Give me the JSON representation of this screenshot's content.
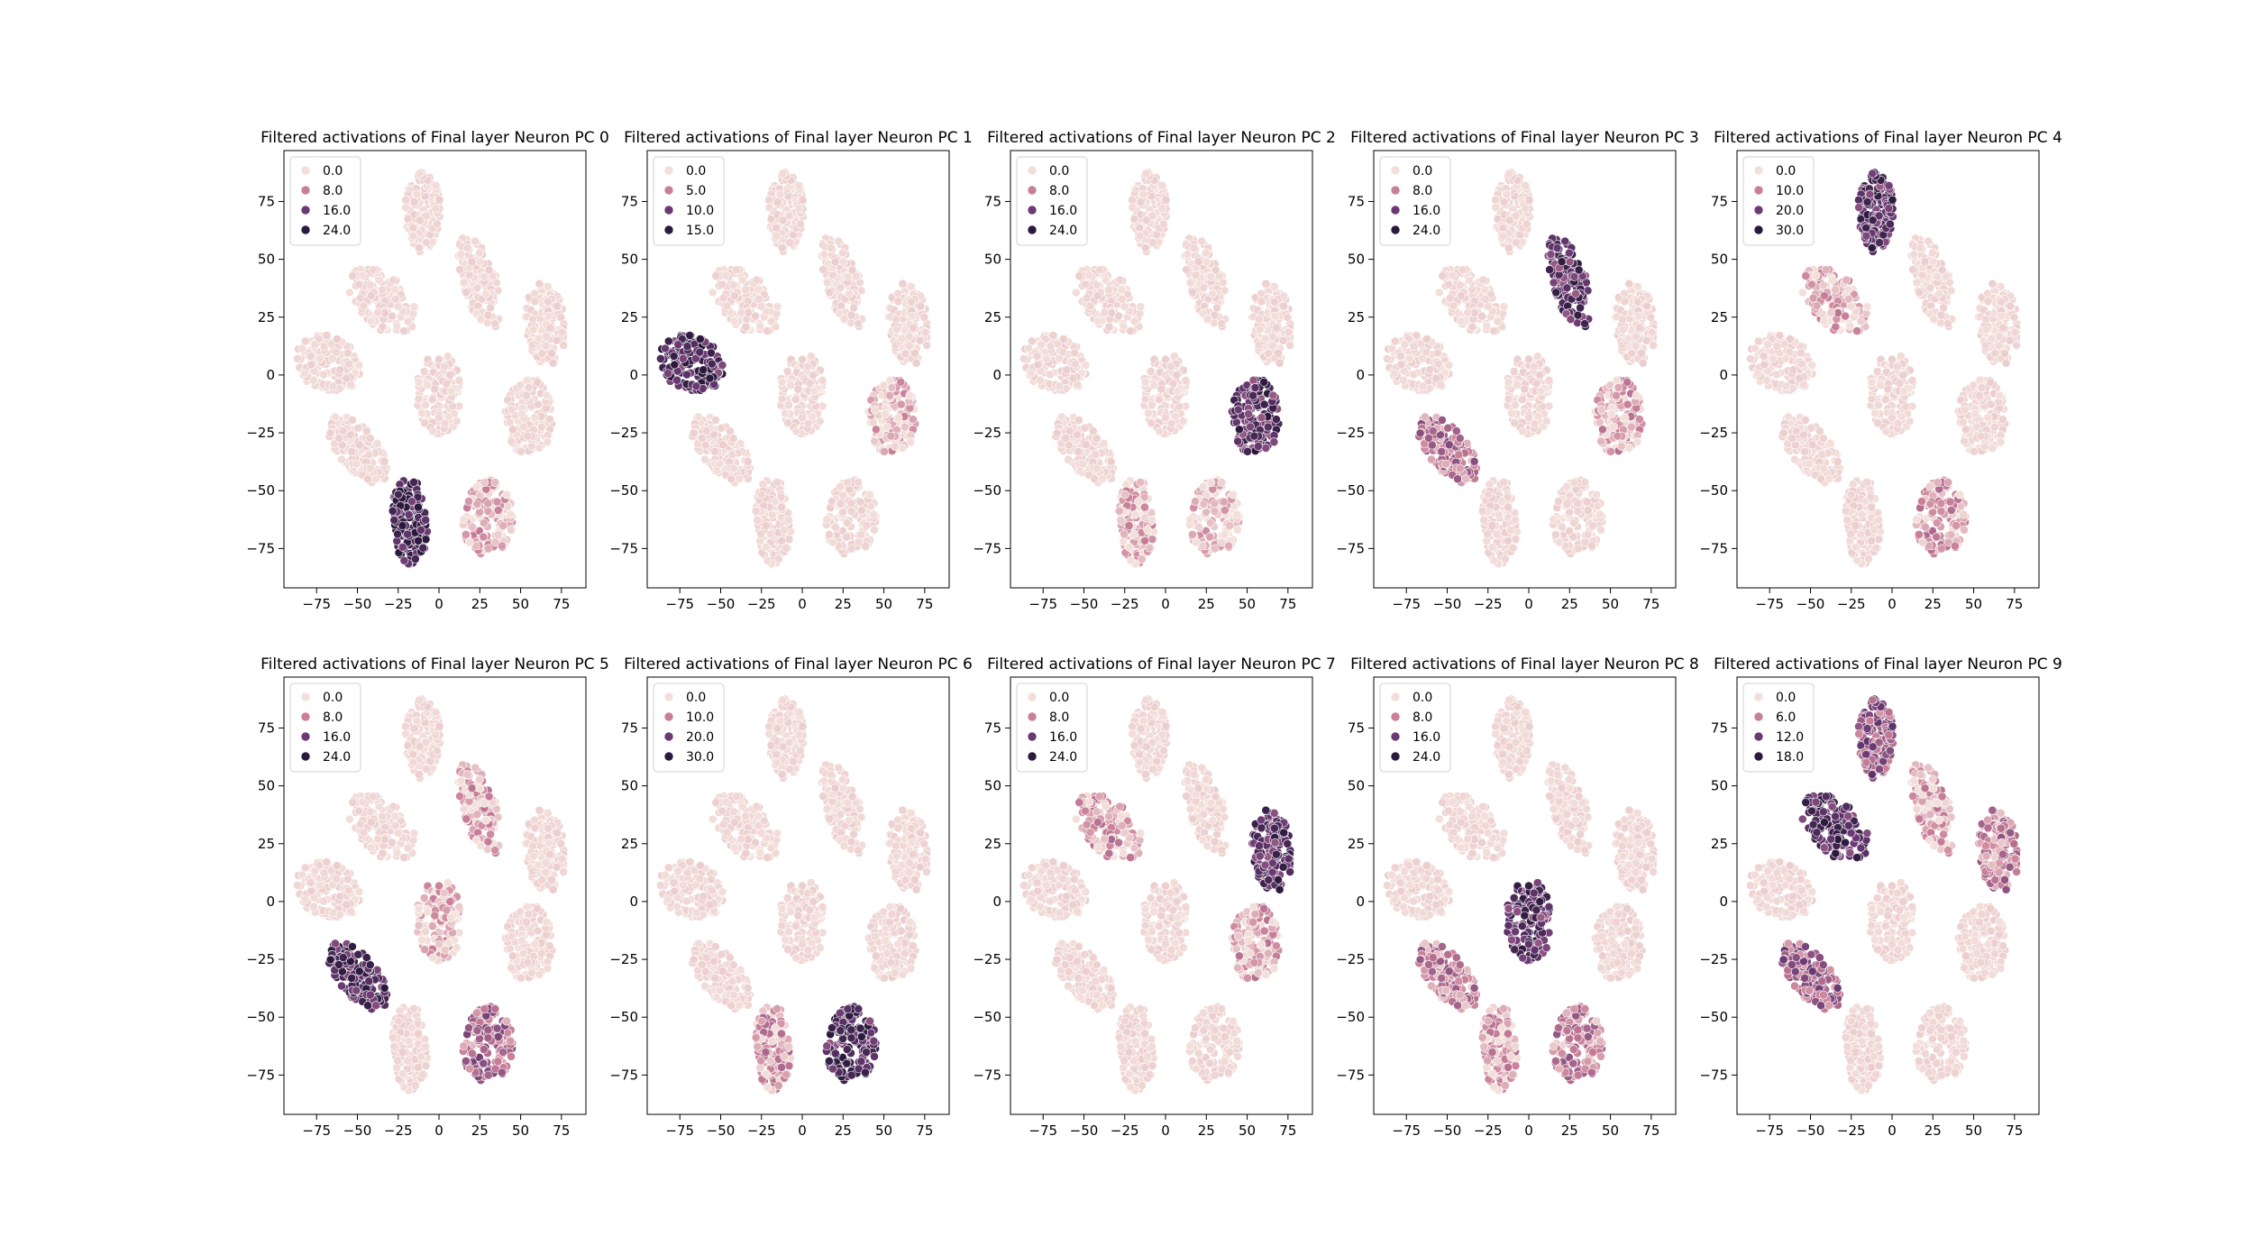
{
  "figure": {
    "layout": {
      "rows": 2,
      "cols": 5
    }
  },
  "colors": {
    "low": "#f3dfda",
    "mid_low": "#c97f98",
    "mid_high": "#6b3a74",
    "high": "#2b1a3d",
    "edge": "#ffffff"
  },
  "chart_data": [
    {
      "type": "scatter",
      "title": "Filtered activations of Final layer Neuron PC 0",
      "xlim": [
        -95,
        90
      ],
      "ylim": [
        -92,
        97
      ],
      "xticks": [
        -75,
        -50,
        -25,
        0,
        25,
        50,
        75
      ],
      "yticks": [
        -75,
        -50,
        -25,
        0,
        25,
        50,
        75
      ],
      "legend": {
        "placement": "upper-left",
        "entries": [
          "0.0",
          "8.0",
          "16.0",
          "24.0"
        ]
      },
      "hue_max": 24,
      "highlights": [
        {
          "cluster": 9,
          "level": 0.95
        },
        {
          "cluster": 8,
          "level": 0.22
        }
      ]
    },
    {
      "type": "scatter",
      "title": "Filtered activations of Final layer Neuron PC 1",
      "xlim": [
        -95,
        90
      ],
      "ylim": [
        -92,
        97
      ],
      "xticks": [
        -75,
        -50,
        -25,
        0,
        25,
        50,
        75
      ],
      "yticks": [
        -75,
        -50,
        -25,
        0,
        25,
        50,
        75
      ],
      "legend": {
        "placement": "upper-left",
        "entries": [
          "0.0",
          "5.0",
          "10.0",
          "15.0"
        ]
      },
      "hue_max": 15,
      "highlights": [
        {
          "cluster": 1,
          "level": 0.92
        },
        {
          "cluster": 6,
          "level": 0.18
        }
      ]
    },
    {
      "type": "scatter",
      "title": "Filtered activations of Final layer Neuron PC 2",
      "xlim": [
        -95,
        90
      ],
      "ylim": [
        -92,
        97
      ],
      "xticks": [
        -75,
        -50,
        -25,
        0,
        25,
        50,
        75
      ],
      "yticks": [
        -75,
        -50,
        -25,
        0,
        25,
        50,
        75
      ],
      "legend": {
        "placement": "upper-left",
        "entries": [
          "0.0",
          "8.0",
          "16.0",
          "24.0"
        ]
      },
      "hue_max": 24,
      "highlights": [
        {
          "cluster": 6,
          "level": 0.85
        },
        {
          "cluster": 9,
          "level": 0.2
        },
        {
          "cluster": 8,
          "level": 0.15
        }
      ]
    },
    {
      "type": "scatter",
      "title": "Filtered activations of Final layer Neuron PC 3",
      "xlim": [
        -95,
        90
      ],
      "ylim": [
        -92,
        97
      ],
      "xticks": [
        -75,
        -50,
        -25,
        0,
        25,
        50,
        75
      ],
      "yticks": [
        -75,
        -50,
        -25,
        0,
        25,
        50,
        75
      ],
      "legend": {
        "placement": "upper-left",
        "entries": [
          "0.0",
          "8.0",
          "16.0",
          "24.0"
        ]
      },
      "hue_max": 24,
      "highlights": [
        {
          "cluster": 3,
          "level": 0.85
        },
        {
          "cluster": 7,
          "level": 0.45
        },
        {
          "cluster": 6,
          "level": 0.25
        }
      ]
    },
    {
      "type": "scatter",
      "title": "Filtered activations of Final layer Neuron PC 4",
      "xlim": [
        -95,
        90
      ],
      "ylim": [
        -92,
        97
      ],
      "xticks": [
        -75,
        -50,
        -25,
        0,
        25,
        50,
        75
      ],
      "yticks": [
        -75,
        -50,
        -25,
        0,
        25,
        50,
        75
      ],
      "legend": {
        "placement": "upper-left",
        "entries": [
          "0.0",
          "10.0",
          "20.0",
          "30.0"
        ]
      },
      "hue_max": 30,
      "highlights": [
        {
          "cluster": 0,
          "level": 0.85
        },
        {
          "cluster": 2,
          "level": 0.25
        },
        {
          "cluster": 8,
          "level": 0.3
        }
      ]
    },
    {
      "type": "scatter",
      "title": "Filtered activations of Final layer Neuron PC 5",
      "xlim": [
        -95,
        90
      ],
      "ylim": [
        -92,
        97
      ],
      "xticks": [
        -75,
        -50,
        -25,
        0,
        25,
        50,
        75
      ],
      "yticks": [
        -75,
        -50,
        -25,
        0,
        25,
        50,
        75
      ],
      "legend": {
        "placement": "upper-left",
        "entries": [
          "0.0",
          "8.0",
          "16.0",
          "24.0"
        ]
      },
      "hue_max": 24,
      "highlights": [
        {
          "cluster": 7,
          "level": 0.9
        },
        {
          "cluster": 8,
          "level": 0.5
        },
        {
          "cluster": 3,
          "level": 0.25
        },
        {
          "cluster": 5,
          "level": 0.2
        }
      ]
    },
    {
      "type": "scatter",
      "title": "Filtered activations of Final layer Neuron PC 6",
      "xlim": [
        -95,
        90
      ],
      "ylim": [
        -92,
        97
      ],
      "xticks": [
        -75,
        -50,
        -25,
        0,
        25,
        50,
        75
      ],
      "yticks": [
        -75,
        -50,
        -25,
        0,
        25,
        50,
        75
      ],
      "legend": {
        "placement": "upper-left",
        "entries": [
          "0.0",
          "10.0",
          "20.0",
          "30.0"
        ]
      },
      "hue_max": 30,
      "highlights": [
        {
          "cluster": 8,
          "level": 0.9
        },
        {
          "cluster": 9,
          "level": 0.3
        }
      ]
    },
    {
      "type": "scatter",
      "title": "Filtered activations of Final layer Neuron PC 7",
      "xlim": [
        -95,
        90
      ],
      "ylim": [
        -92,
        97
      ],
      "xticks": [
        -75,
        -50,
        -25,
        0,
        25,
        50,
        75
      ],
      "yticks": [
        -75,
        -50,
        -25,
        0,
        25,
        50,
        75
      ],
      "legend": {
        "placement": "upper-left",
        "entries": [
          "0.0",
          "8.0",
          "16.0",
          "24.0"
        ]
      },
      "hue_max": 24,
      "highlights": [
        {
          "cluster": 4,
          "level": 0.85
        },
        {
          "cluster": 2,
          "level": 0.3
        },
        {
          "cluster": 6,
          "level": 0.25
        }
      ]
    },
    {
      "type": "scatter",
      "title": "Filtered activations of Final layer Neuron PC 8",
      "xlim": [
        -95,
        90
      ],
      "ylim": [
        -92,
        97
      ],
      "xticks": [
        -75,
        -50,
        -25,
        0,
        25,
        50,
        75
      ],
      "yticks": [
        -75,
        -50,
        -25,
        0,
        25,
        50,
        75
      ],
      "legend": {
        "placement": "upper-left",
        "entries": [
          "0.0",
          "8.0",
          "16.0",
          "24.0"
        ]
      },
      "hue_max": 24,
      "highlights": [
        {
          "cluster": 5,
          "level": 0.85
        },
        {
          "cluster": 7,
          "level": 0.4
        },
        {
          "cluster": 8,
          "level": 0.4
        },
        {
          "cluster": 9,
          "level": 0.25
        }
      ]
    },
    {
      "type": "scatter",
      "title": "Filtered activations of Final layer Neuron PC 9",
      "xlim": [
        -95,
        90
      ],
      "ylim": [
        -92,
        97
      ],
      "xticks": [
        -75,
        -50,
        -25,
        0,
        25,
        50,
        75
      ],
      "yticks": [
        -75,
        -50,
        -25,
        0,
        25,
        50,
        75
      ],
      "legend": {
        "placement": "upper-left",
        "entries": [
          "0.0",
          "6.0",
          "12.0",
          "18.0"
        ]
      },
      "hue_max": 18,
      "highlights": [
        {
          "cluster": 2,
          "level": 0.9
        },
        {
          "cluster": 0,
          "level": 0.6
        },
        {
          "cluster": 7,
          "level": 0.55
        },
        {
          "cluster": 4,
          "level": 0.4
        },
        {
          "cluster": 3,
          "level": 0.25
        }
      ]
    }
  ],
  "clusters": [
    {
      "id": 0,
      "cx": -10,
      "cy": 70,
      "rx": 11,
      "ry": 18,
      "rot": 0
    },
    {
      "id": 1,
      "cx": -68,
      "cy": 5,
      "rx": 20,
      "ry": 12,
      "rot": -10
    },
    {
      "id": 2,
      "cx": -35,
      "cy": 32,
      "rx": 22,
      "ry": 12,
      "rot": -25
    },
    {
      "id": 3,
      "cx": 25,
      "cy": 40,
      "rx": 10,
      "ry": 22,
      "rot": 28
    },
    {
      "id": 4,
      "cx": 65,
      "cy": 22,
      "rx": 12,
      "ry": 18,
      "rot": 10
    },
    {
      "id": 5,
      "cx": 0,
      "cy": -8,
      "rx": 14,
      "ry": 18,
      "rot": 5
    },
    {
      "id": 6,
      "cx": 55,
      "cy": -18,
      "rx": 15,
      "ry": 17,
      "rot": 10
    },
    {
      "id": 7,
      "cx": -50,
      "cy": -32,
      "rx": 10,
      "ry": 22,
      "rot": 55
    },
    {
      "id": 8,
      "cx": 30,
      "cy": -62,
      "rx": 15,
      "ry": 17,
      "rot": -25
    },
    {
      "id": 9,
      "cx": -18,
      "cy": -63,
      "rx": 11,
      "ry": 19,
      "rot": 5
    }
  ]
}
